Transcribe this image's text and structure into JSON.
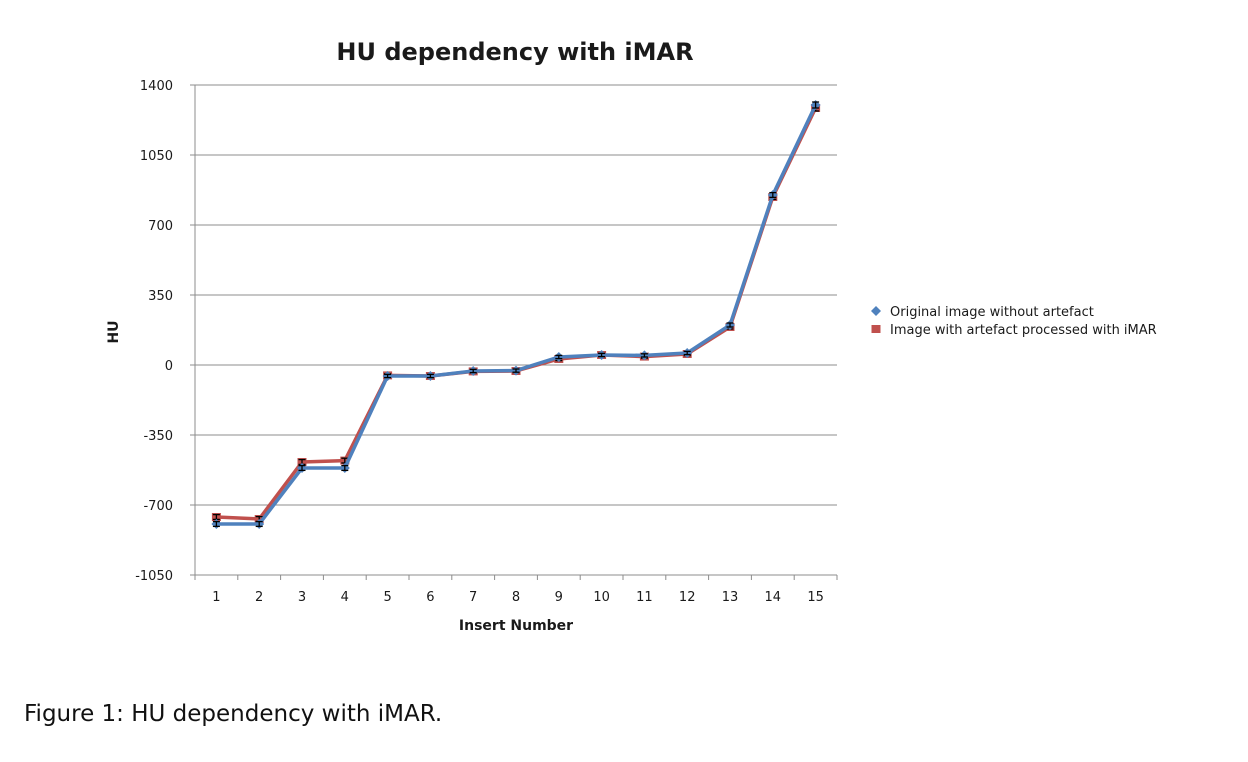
{
  "caption": "Figure 1: HU dependency with iMAR.",
  "chart_data": {
    "type": "line",
    "title": "HU dependency with iMAR",
    "xlabel": "Insert Number",
    "ylabel": "HU",
    "categories": [
      "1",
      "2",
      "3",
      "4",
      "5",
      "6",
      "7",
      "8",
      "9",
      "10",
      "11",
      "12",
      "13",
      "14",
      "15"
    ],
    "ylim": [
      -1050,
      1400
    ],
    "yticks": [
      1400,
      1050,
      700,
      350,
      0,
      -350,
      -700,
      -1050
    ],
    "grid": true,
    "legend_position": "right",
    "series": [
      {
        "name": "Original image without artefact",
        "color": "#4f81bd",
        "marker": "diamond",
        "values": [
          -795,
          -795,
          -515,
          -515,
          -55,
          -55,
          -30,
          -28,
          40,
          50,
          48,
          60,
          200,
          850,
          1300
        ],
        "error": [
          12,
          12,
          12,
          12,
          8,
          8,
          8,
          8,
          8,
          8,
          8,
          8,
          10,
          12,
          15
        ]
      },
      {
        "name": "Image with artefact processed with iMAR",
        "color": "#c0504d",
        "marker": "square",
        "values": [
          -760,
          -770,
          -485,
          -478,
          -52,
          -55,
          -32,
          -30,
          30,
          50,
          42,
          55,
          190,
          840,
          1285
        ],
        "error": [
          12,
          12,
          12,
          12,
          8,
          8,
          8,
          8,
          8,
          8,
          8,
          8,
          10,
          12,
          15
        ]
      }
    ]
  }
}
